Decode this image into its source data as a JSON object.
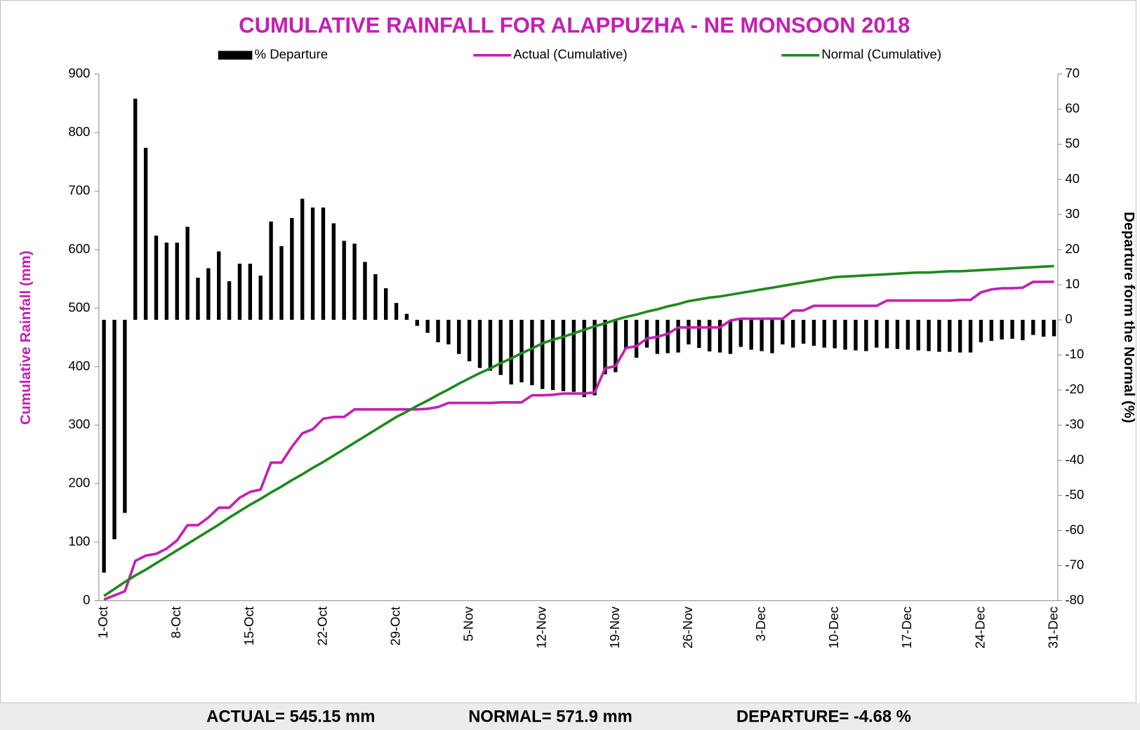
{
  "chart_data": {
    "type": "combo",
    "title": "CUMULATIVE RAINFALL FOR ALAPPUZHA - NE MONSOON 2018",
    "ylabel": "Cumulative Rainfall (mm)",
    "y2label": "Departure form the Normal (%)",
    "categories": [
      "1-Oct",
      null,
      null,
      null,
      null,
      null,
      null,
      "8-Oct",
      null,
      null,
      null,
      null,
      null,
      null,
      "15-Oct",
      null,
      null,
      null,
      null,
      null,
      null,
      "22-Oct",
      null,
      null,
      null,
      null,
      null,
      null,
      "29-Oct",
      null,
      null,
      null,
      null,
      null,
      null,
      "5-Nov",
      null,
      null,
      null,
      null,
      null,
      null,
      "12-Nov",
      null,
      null,
      null,
      null,
      null,
      null,
      "19-Nov",
      null,
      null,
      null,
      null,
      null,
      null,
      "26-Nov",
      null,
      null,
      null,
      null,
      null,
      null,
      "3-Dec",
      null,
      null,
      null,
      null,
      null,
      null,
      "10-Dec",
      null,
      null,
      null,
      null,
      null,
      null,
      "17-Dec",
      null,
      null,
      null,
      null,
      null,
      null,
      "24-Dec",
      null,
      null,
      null,
      null,
      null,
      null,
      "31-Dec"
    ],
    "ylim": [
      0,
      900
    ],
    "yticks": [
      0,
      100,
      200,
      300,
      400,
      500,
      600,
      700,
      800,
      900
    ],
    "y2lim": [
      -80,
      70
    ],
    "y2ticks": [
      -80,
      -70,
      -60,
      -50,
      -40,
      -30,
      -20,
      -10,
      0,
      10,
      20,
      30,
      40,
      50,
      60,
      70
    ],
    "grid": false,
    "legend": "top",
    "series": [
      {
        "name": "% Departure",
        "type": "bar",
        "axis": "y2",
        "color": "#000000",
        "values": [
          -72,
          -62.5,
          -55,
          63,
          49,
          24,
          22,
          22,
          26.5,
          12,
          14.7,
          19.5,
          11,
          16,
          16,
          12.6,
          28,
          21,
          29,
          34.5,
          32,
          32,
          27.5,
          22.5,
          21.7,
          16.5,
          13,
          9,
          4.8,
          1.7,
          -1.7,
          -3.7,
          -6.4,
          -7,
          -9.7,
          -11.8,
          -13.7,
          -14.5,
          -15.7,
          -18.4,
          -17.8,
          -18.6,
          -19.7,
          -20,
          -20.3,
          -20.5,
          -22,
          -21.5,
          -15.5,
          -14.9,
          -8.3,
          -10.8,
          -7.9,
          -9.7,
          -9.5,
          -9.3,
          -7,
          -8,
          -9,
          -9.3,
          -9.7,
          -7.7,
          -8.5,
          -8.9,
          -9.5,
          -7,
          -7.9,
          -6.8,
          -7.4,
          -7.9,
          -8.1,
          -8.5,
          -8.7,
          -8.9,
          -7.9,
          -8.1,
          -8.3,
          -8.5,
          -8.7,
          -8.9,
          -9.1,
          -9.1,
          -9.3,
          -9.3,
          -6.4,
          -6,
          -5.6,
          -5.4,
          -5.8,
          -4.3,
          -4.8,
          -4.68
        ]
      },
      {
        "name": "Actual (Cumulative)",
        "type": "line",
        "color": "#c51fb3",
        "values": [
          2,
          9,
          16,
          68,
          77,
          80,
          89,
          103,
          129,
          129,
          142,
          159,
          159,
          176,
          186,
          190,
          236,
          236,
          263,
          286,
          293,
          311,
          314,
          314,
          327,
          327,
          327,
          327,
          327,
          327,
          327,
          328,
          331,
          338,
          338,
          338,
          338,
          338,
          339,
          339,
          339,
          351,
          351,
          352,
          354,
          354,
          354,
          356,
          397,
          401,
          432,
          435,
          448,
          451,
          456,
          467,
          467,
          467,
          467,
          467,
          479,
          482,
          482,
          482,
          482,
          482,
          496,
          496,
          504,
          504,
          504,
          504,
          504,
          504,
          504,
          513,
          513,
          513,
          513,
          513,
          513,
          513,
          514,
          514,
          527,
          532,
          534,
          534,
          535,
          545,
          545,
          545.15
        ]
      },
      {
        "name": "Normal (Cumulative)",
        "type": "line",
        "color": "#1e8a1e",
        "values": [
          8,
          20,
          32,
          43,
          53,
          64,
          75,
          86,
          97,
          108,
          119,
          130,
          142,
          153,
          164,
          174,
          185,
          195,
          206,
          216,
          227,
          237,
          248,
          259,
          270,
          281,
          292,
          303,
          314,
          323,
          333,
          342,
          352,
          361,
          371,
          380,
          389,
          397,
          406,
          414,
          423,
          431,
          440,
          446,
          451,
          457,
          463,
          469,
          474,
          480,
          485,
          489,
          494,
          498,
          503,
          507,
          512,
          515,
          518,
          520,
          523,
          526,
          529,
          532,
          535,
          538,
          541,
          544,
          547,
          550,
          553,
          554,
          555,
          556,
          557,
          558,
          559,
          560,
          561,
          561,
          562,
          563,
          563,
          564,
          565,
          566,
          567,
          568,
          569,
          570,
          571,
          571.9
        ]
      }
    ]
  },
  "footer": {
    "actual": "ACTUAL= 545.15 mm",
    "normal": "NORMAL= 571.9 mm",
    "departure": "DEPARTURE= -4.68 %"
  }
}
